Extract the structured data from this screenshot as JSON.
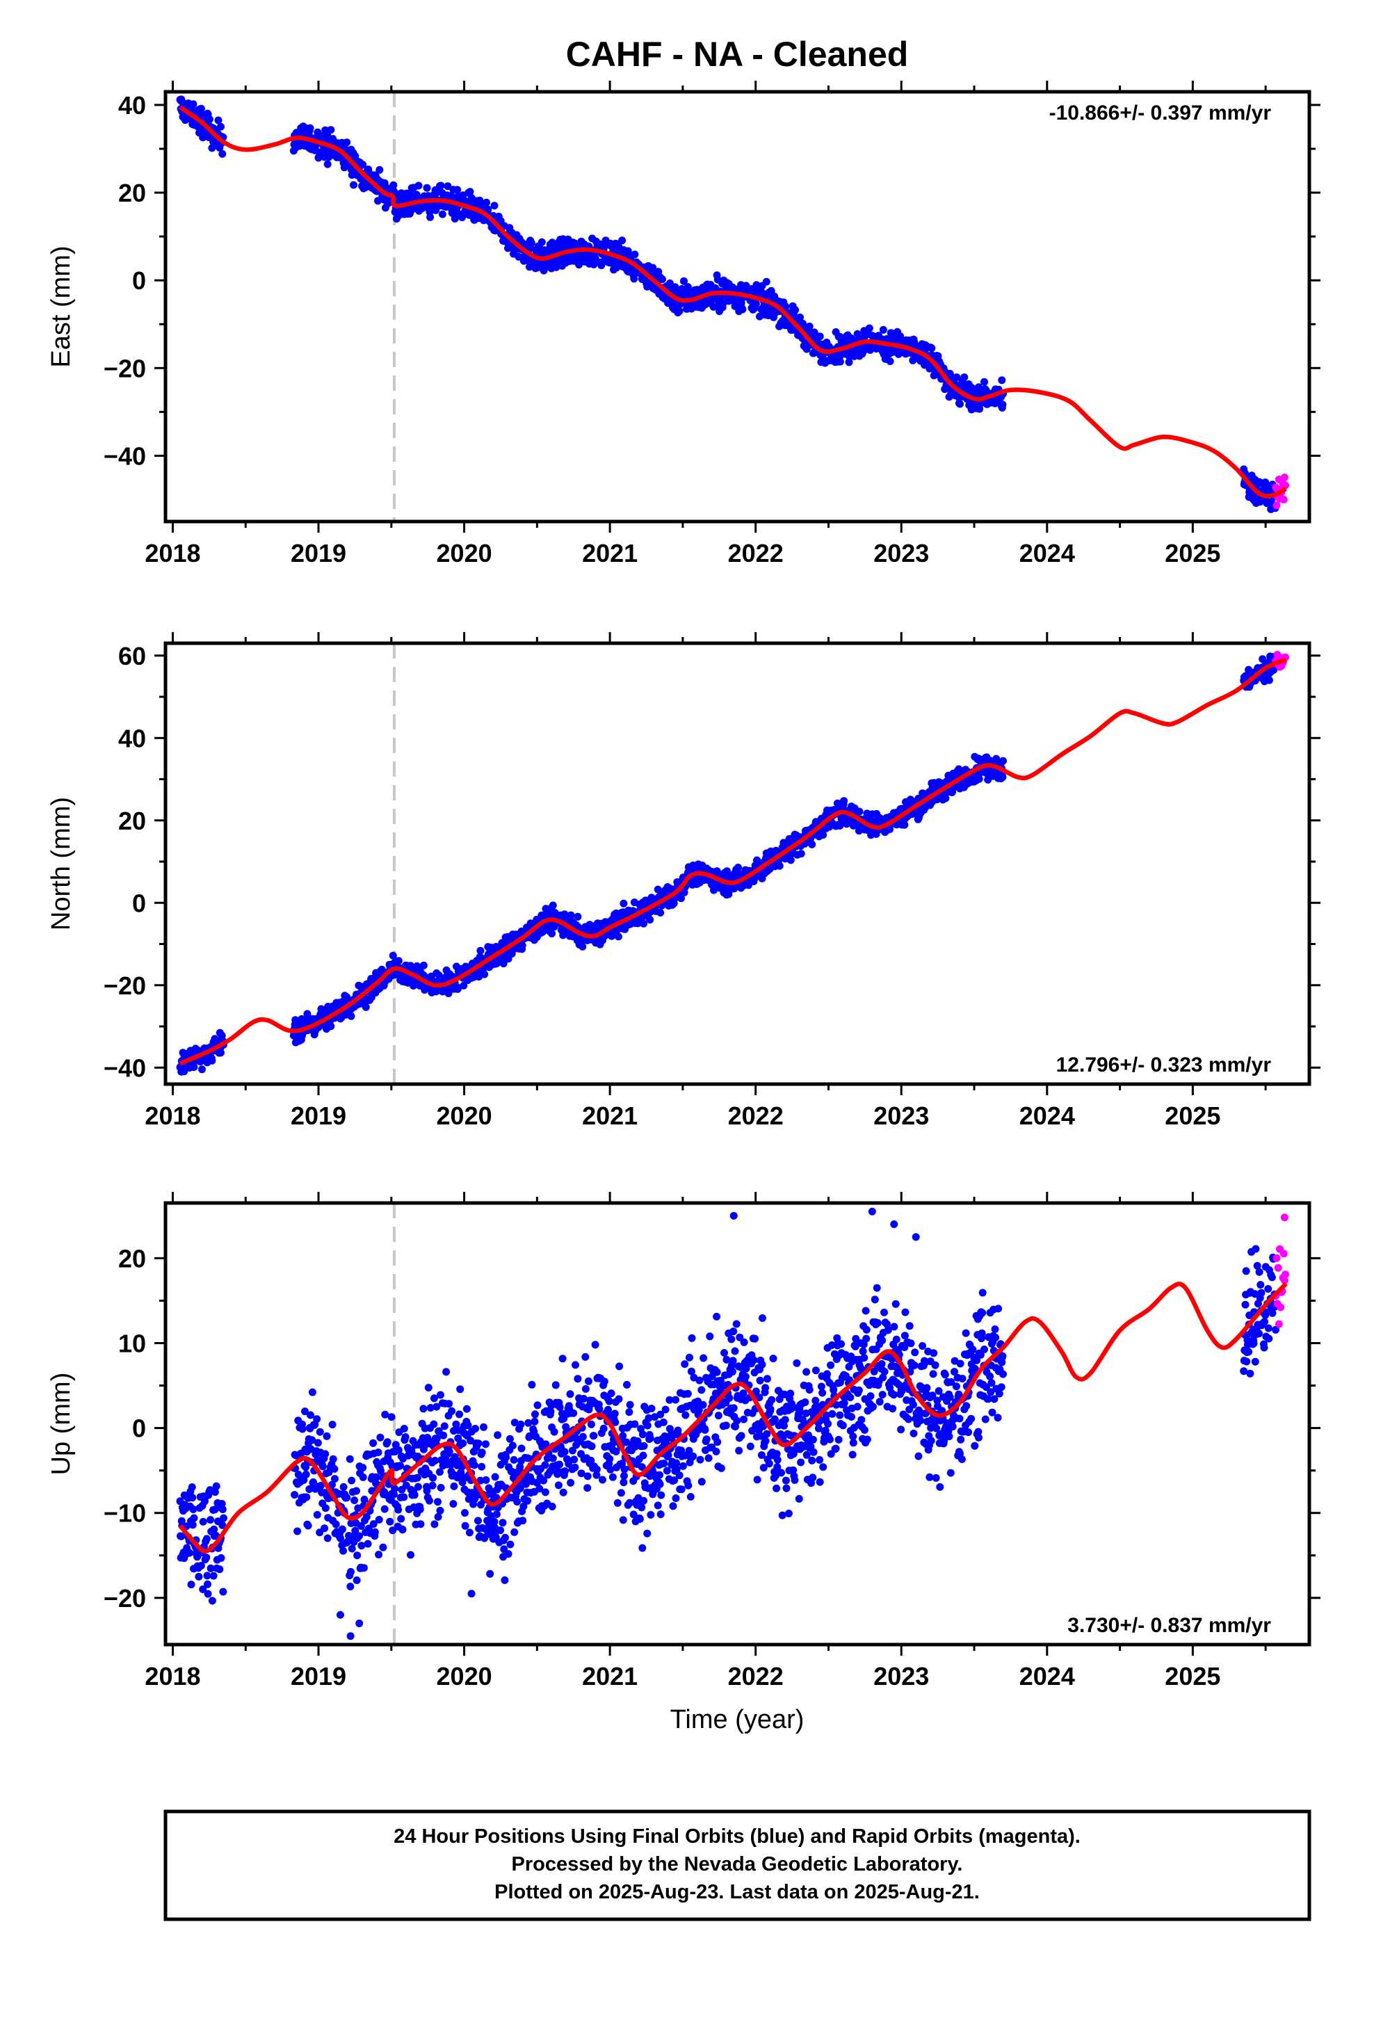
{
  "title": "CAHF  - NA - Cleaned",
  "xlabel": "Time (year)",
  "colors": {
    "final": "#0000ff",
    "rapid": "#ff00ff",
    "model": "#ff0000",
    "offset_line": "#c8c8c8"
  },
  "footer": {
    "lines": [
      "24 Hour Positions Using Final Orbits (blue) and Rapid Orbits (magenta).",
      "Processed by the Nevada Geodetic Laboratory.",
      "Plotted on 2025-Aug-23. Last data on 2025-Aug-21."
    ]
  },
  "chart_data": [
    {
      "type": "scatter",
      "component": "east",
      "ylabel": "East (mm)",
      "rate_label": "-10.866+/- 0.397 mm/yr",
      "rate_position": "top-right",
      "xlim": [
        2017.95,
        2025.8
      ],
      "ylim": [
        -55,
        43
      ],
      "xticks": [
        2018,
        2019,
        2020,
        2021,
        2022,
        2023,
        2024,
        2025
      ],
      "yticks": [
        40,
        20,
        0,
        -20,
        -40
      ],
      "offset_epoch": 2019.52,
      "noise_mm": 1.6,
      "final_segments": [
        [
          2018.05,
          2018.35
        ],
        [
          2018.83,
          2023.7
        ],
        [
          2025.35,
          2025.57
        ]
      ],
      "rapid_segment": [
        2025.57,
        2025.64
      ],
      "model": [
        [
          2018.05,
          39.5
        ],
        [
          2018.2,
          36
        ],
        [
          2018.35,
          31.5
        ],
        [
          2018.5,
          29.8
        ],
        [
          2018.7,
          31
        ],
        [
          2018.85,
          32.5
        ],
        [
          2019.0,
          31.5
        ],
        [
          2019.15,
          29.5
        ],
        [
          2019.3,
          24.5
        ],
        [
          2019.45,
          20
        ],
        [
          2019.51,
          19.2
        ],
        [
          2019.53,
          17
        ],
        [
          2019.7,
          18
        ],
        [
          2019.85,
          18.2
        ],
        [
          2020.0,
          17
        ],
        [
          2020.15,
          15
        ],
        [
          2020.3,
          10
        ],
        [
          2020.45,
          6
        ],
        [
          2020.55,
          5
        ],
        [
          2020.7,
          6.5
        ],
        [
          2020.85,
          7
        ],
        [
          2021.0,
          6
        ],
        [
          2021.15,
          4
        ],
        [
          2021.3,
          0
        ],
        [
          2021.45,
          -4
        ],
        [
          2021.55,
          -4.5
        ],
        [
          2021.7,
          -3
        ],
        [
          2021.85,
          -3
        ],
        [
          2022.0,
          -4
        ],
        [
          2022.15,
          -6
        ],
        [
          2022.3,
          -11
        ],
        [
          2022.45,
          -16
        ],
        [
          2022.6,
          -15.5
        ],
        [
          2022.75,
          -14
        ],
        [
          2022.9,
          -14.5
        ],
        [
          2023.05,
          -15.5
        ],
        [
          2023.2,
          -18
        ],
        [
          2023.35,
          -24
        ],
        [
          2023.5,
          -27
        ],
        [
          2023.6,
          -26.5
        ],
        [
          2023.75,
          -25
        ],
        [
          2023.95,
          -25.5
        ],
        [
          2024.15,
          -27.5
        ],
        [
          2024.3,
          -32
        ],
        [
          2024.5,
          -38
        ],
        [
          2024.6,
          -37.5
        ],
        [
          2024.8,
          -35.7
        ],
        [
          2025.0,
          -37
        ],
        [
          2025.15,
          -39
        ],
        [
          2025.3,
          -43
        ],
        [
          2025.45,
          -48.5
        ],
        [
          2025.55,
          -49
        ],
        [
          2025.64,
          -47.5
        ]
      ]
    },
    {
      "type": "scatter",
      "component": "north",
      "ylabel": "North (mm)",
      "rate_label": "12.796+/- 0.323 mm/yr",
      "rate_position": "bottom-right",
      "xlim": [
        2017.95,
        2025.8
      ],
      "ylim": [
        -44,
        63
      ],
      "xticks": [
        2018,
        2019,
        2020,
        2021,
        2022,
        2023,
        2024,
        2025
      ],
      "yticks": [
        60,
        40,
        20,
        0,
        -20,
        -40
      ],
      "offset_epoch": 2019.52,
      "noise_mm": 1.4,
      "final_segments": [
        [
          2018.05,
          2018.35
        ],
        [
          2018.83,
          2023.7
        ],
        [
          2025.35,
          2025.57
        ]
      ],
      "rapid_segment": [
        2025.57,
        2025.64
      ],
      "model": [
        [
          2018.05,
          -39
        ],
        [
          2018.25,
          -36
        ],
        [
          2018.4,
          -33
        ],
        [
          2018.55,
          -29
        ],
        [
          2018.65,
          -28.5
        ],
        [
          2018.8,
          -31
        ],
        [
          2018.95,
          -30
        ],
        [
          2019.2,
          -25
        ],
        [
          2019.4,
          -19.5
        ],
        [
          2019.52,
          -16
        ],
        [
          2019.65,
          -17.5
        ],
        [
          2019.8,
          -20
        ],
        [
          2019.95,
          -18.5
        ],
        [
          2020.2,
          -13
        ],
        [
          2020.4,
          -8.5
        ],
        [
          2020.55,
          -4.5
        ],
        [
          2020.65,
          -4.5
        ],
        [
          2020.8,
          -7.5
        ],
        [
          2020.9,
          -8
        ],
        [
          2021.0,
          -6
        ],
        [
          2021.2,
          -2.5
        ],
        [
          2021.45,
          2.5
        ],
        [
          2021.55,
          6.5
        ],
        [
          2021.65,
          7
        ],
        [
          2021.8,
          5
        ],
        [
          2021.9,
          5.5
        ],
        [
          2022.1,
          10
        ],
        [
          2022.35,
          16
        ],
        [
          2022.55,
          21.5
        ],
        [
          2022.65,
          21.5
        ],
        [
          2022.8,
          18.5
        ],
        [
          2022.9,
          19
        ],
        [
          2023.1,
          23.5
        ],
        [
          2023.35,
          29
        ],
        [
          2023.55,
          33
        ],
        [
          2023.65,
          33
        ],
        [
          2023.8,
          30.5
        ],
        [
          2023.9,
          31
        ],
        [
          2024.1,
          36
        ],
        [
          2024.3,
          40.5
        ],
        [
          2024.5,
          46
        ],
        [
          2024.6,
          46
        ],
        [
          2024.8,
          43.5
        ],
        [
          2024.9,
          44
        ],
        [
          2025.1,
          48
        ],
        [
          2025.3,
          51.5
        ],
        [
          2025.5,
          57
        ],
        [
          2025.64,
          59
        ]
      ]
    },
    {
      "type": "scatter",
      "component": "up",
      "ylabel": "Up (mm)",
      "rate_label": "3.730+/- 0.837 mm/yr",
      "rate_position": "bottom-right",
      "xlim": [
        2017.95,
        2025.8
      ],
      "ylim": [
        -25.5,
        26.5
      ],
      "xticks": [
        2018,
        2019,
        2020,
        2021,
        2022,
        2023,
        2024,
        2025
      ],
      "yticks": [
        20,
        10,
        0,
        -10,
        -20
      ],
      "offset_epoch": 2019.52,
      "noise_mm": 3.8,
      "final_segments": [
        [
          2018.05,
          2018.35
        ],
        [
          2018.83,
          2023.7
        ],
        [
          2025.35,
          2025.57
        ]
      ],
      "rapid_segment": [
        2025.57,
        2025.64
      ],
      "model": [
        [
          2018.05,
          -11.5
        ],
        [
          2018.15,
          -13.5
        ],
        [
          2018.22,
          -14.5
        ],
        [
          2018.3,
          -13.5
        ],
        [
          2018.45,
          -10
        ],
        [
          2018.65,
          -7.5
        ],
        [
          2018.85,
          -4
        ],
        [
          2018.95,
          -4
        ],
        [
          2019.1,
          -8
        ],
        [
          2019.2,
          -10.5
        ],
        [
          2019.3,
          -10
        ],
        [
          2019.42,
          -7
        ],
        [
          2019.5,
          -5
        ],
        [
          2019.52,
          -6.5
        ],
        [
          2019.7,
          -4
        ],
        [
          2019.85,
          -2
        ],
        [
          2019.95,
          -2.5
        ],
        [
          2020.1,
          -7
        ],
        [
          2020.2,
          -9
        ],
        [
          2020.35,
          -6.5
        ],
        [
          2020.5,
          -3.5
        ],
        [
          2020.7,
          -1
        ],
        [
          2020.9,
          1.5
        ],
        [
          2021.0,
          0.5
        ],
        [
          2021.1,
          -3
        ],
        [
          2021.2,
          -5.5
        ],
        [
          2021.35,
          -3
        ],
        [
          2021.5,
          -1
        ],
        [
          2021.7,
          2.5
        ],
        [
          2021.85,
          5
        ],
        [
          2021.95,
          4.5
        ],
        [
          2022.1,
          0
        ],
        [
          2022.2,
          -2
        ],
        [
          2022.35,
          0
        ],
        [
          2022.55,
          3.5
        ],
        [
          2022.75,
          6.5
        ],
        [
          2022.9,
          9
        ],
        [
          2023.0,
          7.5
        ],
        [
          2023.1,
          4
        ],
        [
          2023.25,
          1.5
        ],
        [
          2023.4,
          3
        ],
        [
          2023.55,
          7
        ],
        [
          2023.7,
          9.5
        ],
        [
          2023.85,
          12.5
        ],
        [
          2023.95,
          12.5
        ],
        [
          2024.1,
          9
        ],
        [
          2024.2,
          6
        ],
        [
          2024.3,
          6.5
        ],
        [
          2024.5,
          11.5
        ],
        [
          2024.7,
          14
        ],
        [
          2024.85,
          16.5
        ],
        [
          2024.95,
          16.5
        ],
        [
          2025.1,
          11.5
        ],
        [
          2025.2,
          9.5
        ],
        [
          2025.3,
          10.5
        ],
        [
          2025.5,
          14.5
        ],
        [
          2025.64,
          17
        ]
      ],
      "outliers": [
        [
          2021.85,
          25
        ],
        [
          2022.8,
          25.5
        ],
        [
          2022.95,
          24
        ],
        [
          2023.1,
          22.5
        ],
        [
          2025.63,
          24.8
        ],
        [
          2019.15,
          -22
        ],
        [
          2019.22,
          -24.5
        ],
        [
          2019.28,
          -23
        ],
        [
          2020.05,
          -19.5
        ]
      ]
    }
  ]
}
